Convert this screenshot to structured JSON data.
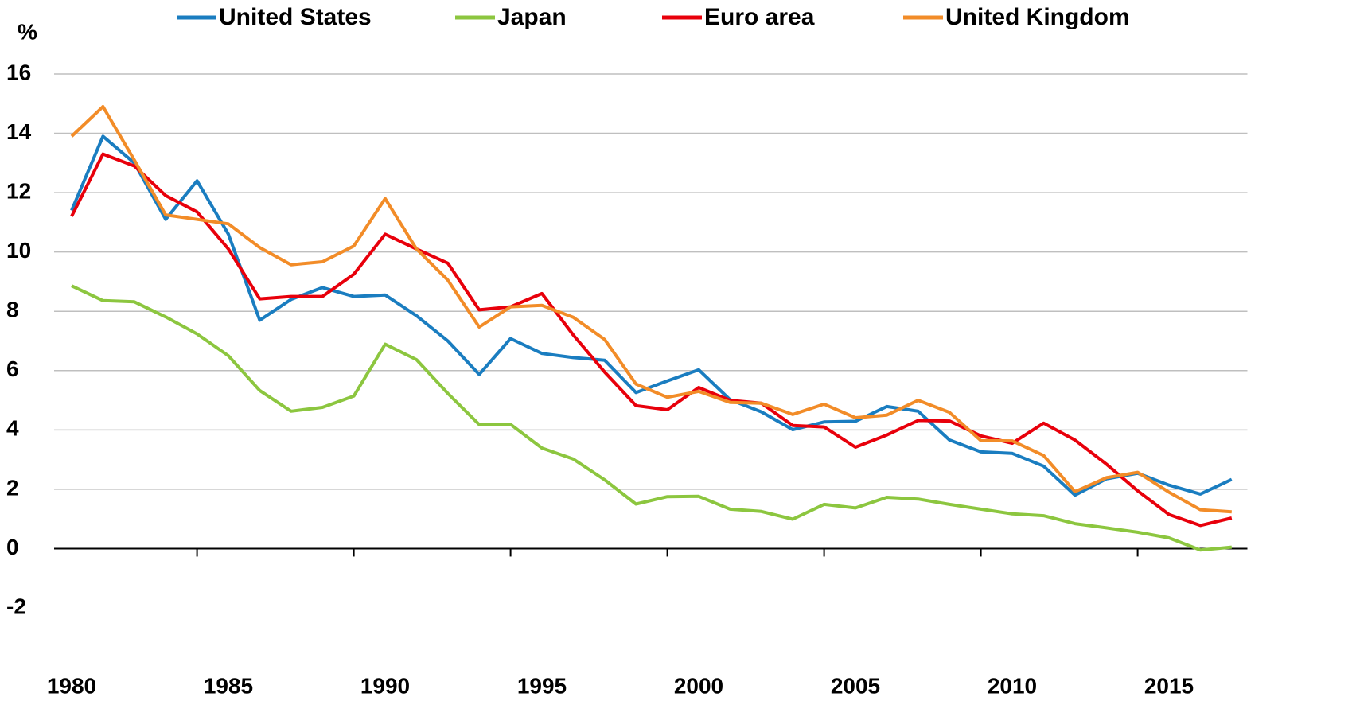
{
  "chart_data": {
    "type": "line",
    "y_unit_label": "%",
    "categories": [
      "1980",
      null,
      null,
      null,
      null,
      "1985",
      null,
      null,
      null,
      null,
      "1990",
      null,
      null,
      null,
      null,
      "1995",
      null,
      null,
      null,
      null,
      "2000",
      null,
      null,
      null,
      null,
      "2005",
      null,
      null,
      null,
      null,
      "2010",
      null,
      null,
      null,
      null,
      "2015",
      null,
      null
    ],
    "series": [
      {
        "name": "United States",
        "color": "#1a7dc0",
        "values": [
          11.4,
          13.9,
          13.0,
          11.1,
          12.4,
          10.6,
          7.7,
          8.4,
          8.8,
          8.5,
          8.55,
          7.85,
          7.0,
          5.87,
          7.08,
          6.58,
          6.44,
          6.35,
          5.26,
          5.65,
          6.03,
          5.02,
          4.61,
          4.01,
          4.27,
          4.29,
          4.79,
          4.63,
          3.66,
          3.26,
          3.21,
          2.78,
          1.8,
          2.35,
          2.54,
          2.14,
          1.84,
          2.33
        ]
      },
      {
        "name": "Japan",
        "color": "#8cc63f",
        "values": [
          8.86,
          8.36,
          8.32,
          7.81,
          7.24,
          6.5,
          5.33,
          4.63,
          4.76,
          5.14,
          6.89,
          6.37,
          5.23,
          4.18,
          4.19,
          3.39,
          3.02,
          2.32,
          1.5,
          1.75,
          1.76,
          1.33,
          1.25,
          0.99,
          1.49,
          1.37,
          1.73,
          1.67,
          1.49,
          1.33,
          1.17,
          1.11,
          0.84,
          0.7,
          0.55,
          0.36,
          -0.05,
          0.05
        ]
      },
      {
        "name": "Euro area",
        "color": "#e8000b",
        "values": [
          11.2,
          13.3,
          12.9,
          11.9,
          11.35,
          10.1,
          8.42,
          8.5,
          8.5,
          9.25,
          10.6,
          10.1,
          9.62,
          8.05,
          8.15,
          8.6,
          7.2,
          5.95,
          4.82,
          4.68,
          5.43,
          5.0,
          4.9,
          4.15,
          4.1,
          3.42,
          3.83,
          4.32,
          4.3,
          3.8,
          3.55,
          4.23,
          3.66,
          2.85,
          1.95,
          1.15,
          0.78,
          1.03
        ]
      },
      {
        "name": "United Kingdom",
        "color": "#f28c28",
        "values": [
          13.9,
          14.9,
          13.1,
          11.25,
          11.1,
          10.95,
          10.15,
          9.57,
          9.67,
          10.2,
          11.8,
          10.1,
          9.05,
          7.47,
          8.15,
          8.2,
          7.8,
          7.05,
          5.55,
          5.1,
          5.3,
          4.93,
          4.9,
          4.52,
          4.87,
          4.41,
          4.5,
          5.0,
          4.59,
          3.64,
          3.63,
          3.14,
          1.92,
          2.39,
          2.57,
          1.9,
          1.31,
          1.24
        ]
      }
    ],
    "ylim": [
      -2,
      16
    ],
    "yticks": [
      -2,
      0,
      2,
      4,
      6,
      8,
      10,
      12,
      14,
      16
    ],
    "grid": true,
    "legend": "top"
  }
}
